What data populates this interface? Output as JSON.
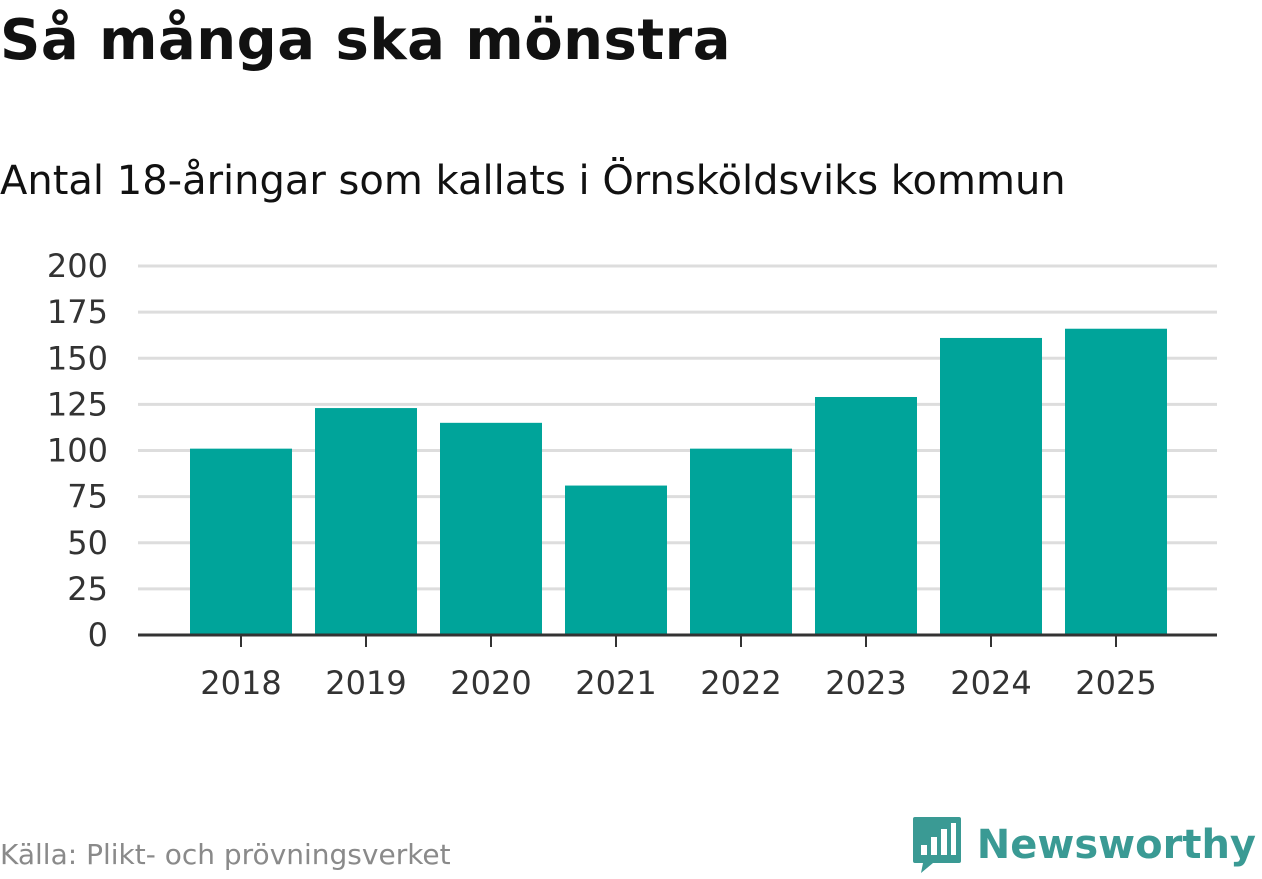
{
  "chart_data": {
    "type": "bar",
    "title": "Så många ska mönstra",
    "subtitle": "Antal 18-åringar som kallats i Örnsköldsviks kommun",
    "categories": [
      "2018",
      "2019",
      "2020",
      "2021",
      "2022",
      "2023",
      "2024",
      "2025"
    ],
    "values": [
      101,
      123,
      115,
      81,
      101,
      129,
      161,
      166
    ],
    "ylim": [
      0,
      200
    ],
    "yticks": [
      0,
      25,
      50,
      75,
      100,
      125,
      150,
      175,
      200
    ],
    "xlabel": "",
    "ylabel": "",
    "grid": true,
    "bar_color": "#00a49a",
    "grid_color": "#dddddd",
    "axis_color": "#333333"
  },
  "footer": {
    "source": "Källa: Plikt- och prövningsverket",
    "brand": "Newsworthy",
    "brand_color": "#3a9a94"
  }
}
